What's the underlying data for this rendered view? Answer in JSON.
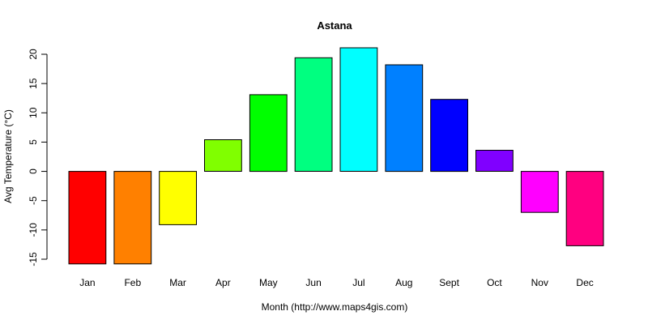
{
  "chart_data": {
    "type": "bar",
    "title": "Astana",
    "xlabel": "Month (http://www.maps4gis.com)",
    "ylabel": "Avg Temperature (°C)",
    "categories": [
      "Jan",
      "Feb",
      "Mar",
      "Apr",
      "May",
      "Jun",
      "Jul",
      "Aug",
      "Sept",
      "Oct",
      "Nov",
      "Dec"
    ],
    "values": [
      -15.8,
      -15.8,
      -9.1,
      5.4,
      13.1,
      19.4,
      21.1,
      18.2,
      12.3,
      3.6,
      -7.0,
      -12.7
    ],
    "colors": [
      "#ff0000",
      "#ff8000",
      "#ffff00",
      "#80ff00",
      "#00ff00",
      "#00ff80",
      "#00ffff",
      "#0080ff",
      "#0000ff",
      "#8000ff",
      "#ff00ff",
      "#ff0080"
    ],
    "ylim": [
      -17,
      22
    ],
    "yticks": [
      -15,
      -10,
      -5,
      0,
      5,
      10,
      15,
      20
    ],
    "grid": false,
    "legend": "none"
  }
}
